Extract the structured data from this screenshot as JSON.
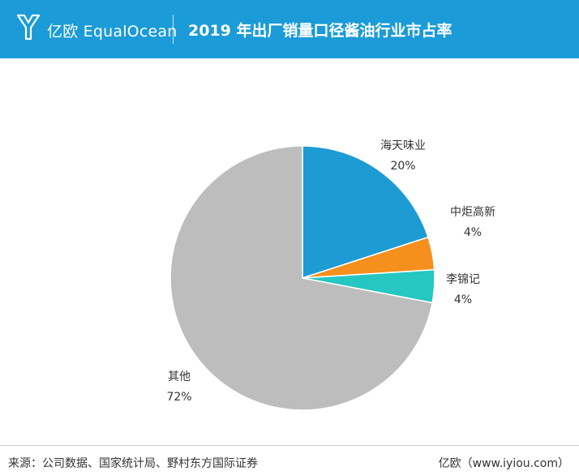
{
  "header": {
    "brand": "亿欧 EqualOcean",
    "title": "2019 年出厂销量口径酱油行业市占率"
  },
  "chart_data": {
    "type": "pie",
    "title": "2019 年出厂销量口径酱油行业市占率",
    "categories": [
      "海天味业",
      "中炬高新",
      "李锦记",
      "其他"
    ],
    "values": [
      20,
      4,
      4,
      72
    ],
    "labels": [
      "20%",
      "4%",
      "4%",
      "72%"
    ],
    "colors": [
      "#1f9bd4",
      "#f5901e",
      "#26c7c2",
      "#bdbdbd"
    ],
    "start_angle_deg": 0,
    "direction": "clockwise"
  },
  "footer": {
    "source": "来源：公司数据、国家统计局、野村东方国际证券",
    "credit": "亿欧（www.iyiou.com）"
  }
}
